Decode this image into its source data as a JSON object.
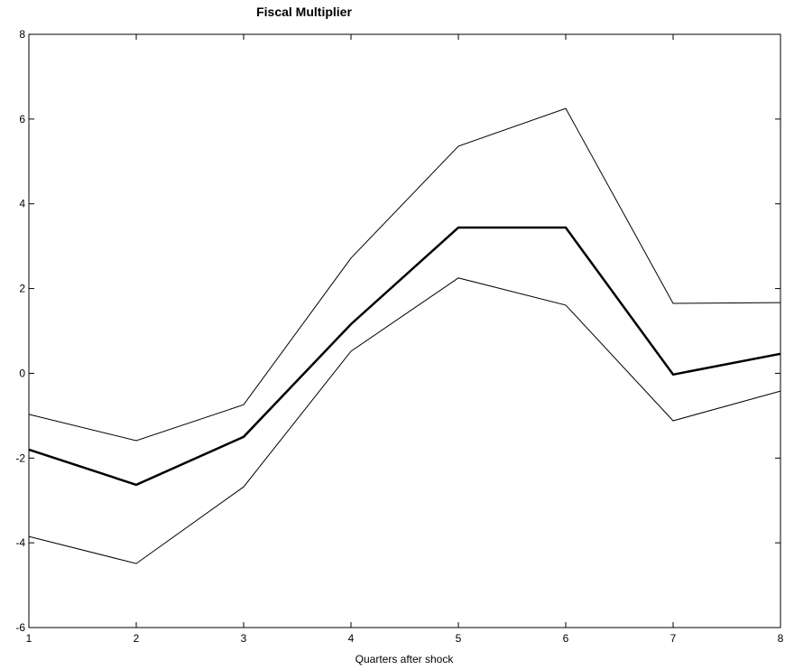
{
  "chart_data": {
    "type": "line",
    "title": "Fiscal Multiplier",
    "x_label": "Quarters after shock",
    "x": [
      1,
      2,
      3,
      4,
      5,
      6,
      7,
      8
    ],
    "series": [
      {
        "color": "#000000",
        "width": 2.5,
        "values": [
          -1.8,
          -2.63,
          -1.5,
          1.16,
          3.44,
          3.44,
          -0.03,
          0.46
        ]
      },
      {
        "color": "#000000",
        "width": 1,
        "values": [
          -0.97,
          -1.59,
          -0.74,
          2.72,
          5.36,
          6.25,
          1.65,
          1.67
        ]
      },
      {
        "color": "#000000",
        "width": 1,
        "values": [
          -3.85,
          -4.49,
          -2.68,
          0.52,
          2.25,
          1.61,
          -1.12,
          -0.42
        ]
      }
    ],
    "xlim": [
      1,
      8
    ],
    "xticks": [
      1,
      2,
      3,
      4,
      5,
      6,
      7,
      8
    ],
    "ylim": [
      -6,
      8
    ],
    "yticks": [
      -6,
      -4,
      -2,
      0,
      2,
      4,
      6,
      8
    ],
    "grid": false
  }
}
